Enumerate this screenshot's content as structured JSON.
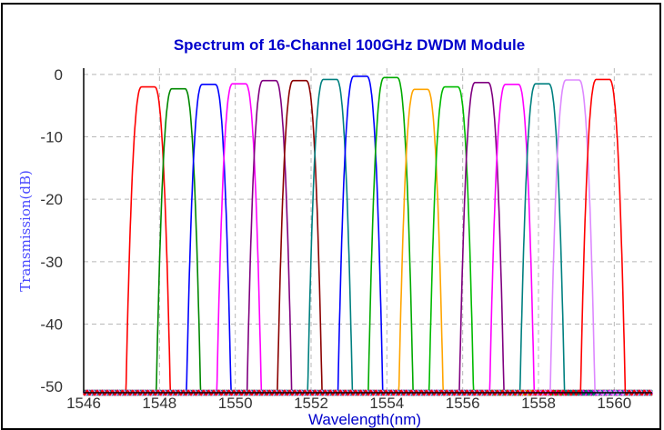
{
  "chart_data": {
    "type": "line",
    "title": "Spectrum of 16-Channel 100GHz DWDM Module",
    "xlabel": "Wavelength(nm)",
    "ylabel": "Transmission(dB)",
    "xlim": [
      1546,
      1561
    ],
    "ylim": [
      -51,
      1
    ],
    "xticks": [
      1546,
      1548,
      1550,
      1552,
      1554,
      1556,
      1558,
      1560
    ],
    "yticks": [
      0,
      -10,
      -20,
      -30,
      -40,
      -50
    ],
    "grid": true,
    "legend": "none",
    "channel_width_nm": 0.75,
    "floor_db": -51,
    "series": [
      {
        "center": 1547.7,
        "peak": -2.0,
        "color": "#ff0000"
      },
      {
        "center": 1548.5,
        "peak": -2.3,
        "color": "#008800"
      },
      {
        "center": 1549.3,
        "peak": -1.6,
        "color": "#0000ff"
      },
      {
        "center": 1550.1,
        "peak": -1.5,
        "color": "#ff00ff"
      },
      {
        "center": 1550.9,
        "peak": -1.0,
        "color": "#800080"
      },
      {
        "center": 1551.7,
        "peak": -1.0,
        "color": "#8b0000"
      },
      {
        "center": 1552.5,
        "peak": -0.8,
        "color": "#008080"
      },
      {
        "center": 1553.3,
        "peak": -0.3,
        "color": "#0000ff"
      },
      {
        "center": 1554.1,
        "peak": -0.5,
        "color": "#00aa00"
      },
      {
        "center": 1554.9,
        "peak": -2.4,
        "color": "#ffa500"
      },
      {
        "center": 1555.7,
        "peak": -2.0,
        "color": "#00bb00"
      },
      {
        "center": 1556.5,
        "peak": -1.3,
        "color": "#800080"
      },
      {
        "center": 1557.3,
        "peak": -1.6,
        "color": "#ff00ff"
      },
      {
        "center": 1558.1,
        "peak": -1.5,
        "color": "#008080"
      },
      {
        "center": 1558.9,
        "peak": -0.9,
        "color": "#dd88ff"
      },
      {
        "center": 1559.7,
        "peak": -0.8,
        "color": "#ff0000"
      }
    ]
  }
}
